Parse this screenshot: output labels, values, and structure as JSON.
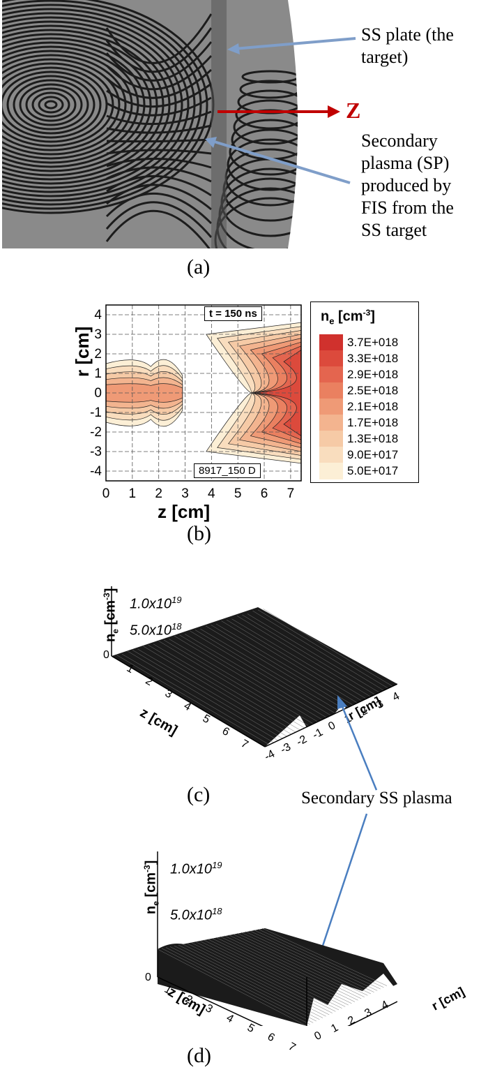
{
  "panel_a": {
    "label": "(a)",
    "annotation_target": [
      "SS plate (the",
      "target)"
    ],
    "axis_label": "Z",
    "annotation_plasma": [
      "Secondary",
      "plasma (SP)",
      "produced by",
      "FIS from the",
      "SS target"
    ]
  },
  "panel_b": {
    "label": "(b)",
    "chart_data": {
      "type": "heatmap",
      "xlabel": "z [cm]",
      "ylabel": "r [cm]",
      "x_ticks": [
        "0",
        "1",
        "2",
        "3",
        "4",
        "5",
        "6",
        "7"
      ],
      "y_ticks": [
        "4",
        "3",
        "2",
        "1",
        "0",
        "-1",
        "-2",
        "-3",
        "-4"
      ],
      "xlim": [
        0,
        7.4
      ],
      "ylim": [
        -4.5,
        4.5
      ],
      "time_label": "t = 150 ns",
      "shot_label": "8917_150 D",
      "legend_title": "n",
      "legend_title_sub": "e",
      "legend_title_unit": "[cm",
      "legend_title_sup": "-3",
      "legend_title_end": "]",
      "levels": [
        "3.7E+018",
        "3.3E+018",
        "2.9E+018",
        "2.5E+018",
        "2.1E+018",
        "1.7E+018",
        "1.3E+018",
        "9.0E+017",
        "5.0E+017"
      ],
      "level_colors": [
        "#d0312d",
        "#dc4a3c",
        "#e4654f",
        "#ea8060",
        "#ef9a76",
        "#f3b48f",
        "#f6caa6",
        "#f9ddbe",
        "#fcefd6"
      ]
    }
  },
  "panel_c": {
    "label": "(c)",
    "zlabel_main": "n",
    "zlabel_sub": "e",
    "zlabel_unit": "[cm",
    "zlabel_sup": "-3",
    "zlabel_end": "]",
    "z_tick_top": "1.0x10",
    "z_tick_top_exp": "19",
    "z_tick_mid": "5.0x10",
    "z_tick_mid_exp": "18",
    "z_tick_zero": "0",
    "z_axis_label": "z [cm]",
    "z_axis_ticks": [
      "1",
      "2",
      "3",
      "4",
      "5",
      "6",
      "7"
    ],
    "r_axis_label": "r [cm]",
    "r_axis_ticks": [
      "-4",
      "-3",
      "-2",
      "-1",
      "0",
      "1",
      "2",
      "3",
      "4"
    ]
  },
  "panel_d": {
    "label": "(d)",
    "zlabel_main": "n",
    "zlabel_sub": "e",
    "zlabel_unit": "[cm",
    "zlabel_sup": "-3",
    "zlabel_end": "]",
    "z_tick_top": "1.0x10",
    "z_tick_top_exp": "19",
    "z_tick_mid": "5.0x10",
    "z_tick_mid_exp": "18",
    "z_tick_zero": "0",
    "z_axis_label": "z [cm]",
    "z_axis_ticks": [
      "1",
      "2",
      "3",
      "4",
      "5",
      "6",
      "7"
    ],
    "r_axis_label": "r [cm]",
    "r_axis_ticks": [
      "0",
      "1",
      "2",
      "3",
      "4"
    ]
  },
  "shared_annotation": "Secondary SS plasma",
  "colors": {
    "arrow_blue": "#7f9ec9",
    "arrow_red": "#c00000",
    "pointer_blue": "#4a7ec0"
  }
}
